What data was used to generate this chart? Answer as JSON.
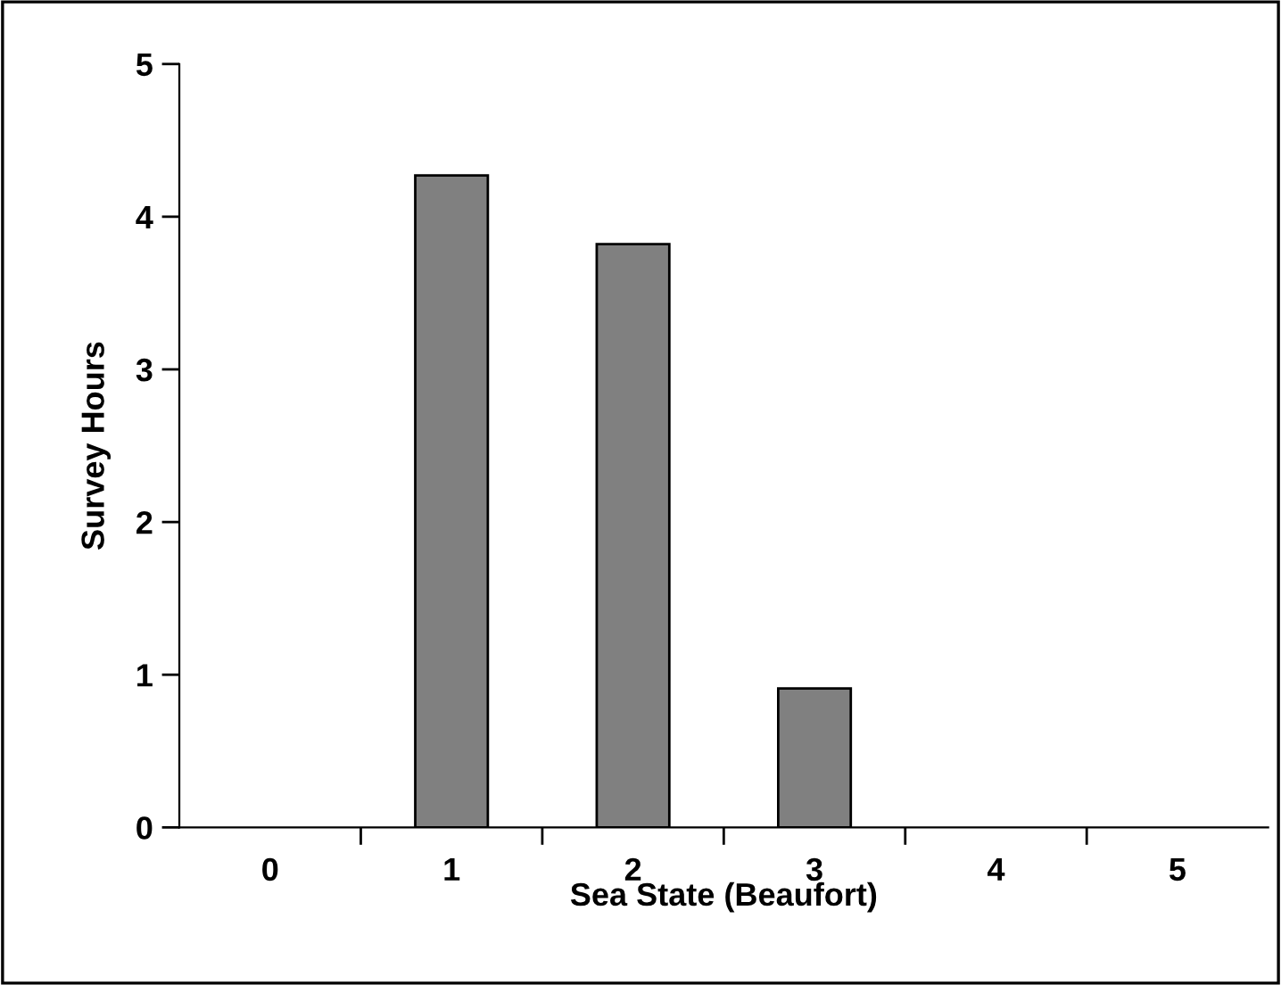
{
  "chart_data": {
    "type": "bar",
    "xlabel": "Sea State (Beaufort)",
    "ylabel": "Survey Hours",
    "categories": [
      "0",
      "1",
      "2",
      "3",
      "4",
      "5"
    ],
    "values": [
      0,
      4.27,
      3.82,
      0.91,
      0,
      0
    ],
    "color": "#808080",
    "ylim": [
      0,
      5
    ],
    "yticks": [
      0,
      1,
      2,
      3,
      4,
      5
    ],
    "grid": false
  }
}
